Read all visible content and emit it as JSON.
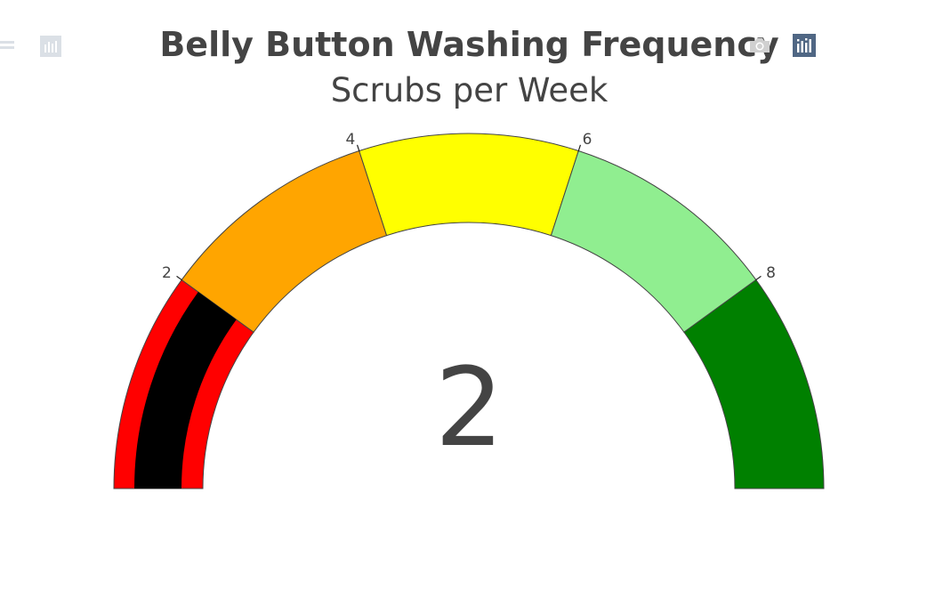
{
  "modebar": {
    "camera_icon": "camera-icon",
    "bar_icon": "plotly-bar-icon",
    "icon_color": "#d0d0d0",
    "active_color": "#506784"
  },
  "chart_data": {
    "type": "gauge",
    "title": "Belly Button Washing Frequency",
    "subtitle": "Scrubs per Week",
    "value": 2,
    "value_label": "2",
    "range": [
      0,
      10
    ],
    "ticks": [
      {
        "value": 2,
        "label": "2"
      },
      {
        "value": 4,
        "label": "4"
      },
      {
        "value": 6,
        "label": "6"
      },
      {
        "value": 8,
        "label": "8"
      }
    ],
    "steps": [
      {
        "range": [
          0,
          2
        ],
        "color": "#ff0000"
      },
      {
        "range": [
          2,
          4
        ],
        "color": "#ffa500"
      },
      {
        "range": [
          4,
          6
        ],
        "color": "#ffff00"
      },
      {
        "range": [
          6,
          8
        ],
        "color": "#90ee90"
      },
      {
        "range": [
          8,
          10
        ],
        "color": "#008000"
      }
    ],
    "bar_color": "#000000",
    "border_color": "#444444"
  }
}
